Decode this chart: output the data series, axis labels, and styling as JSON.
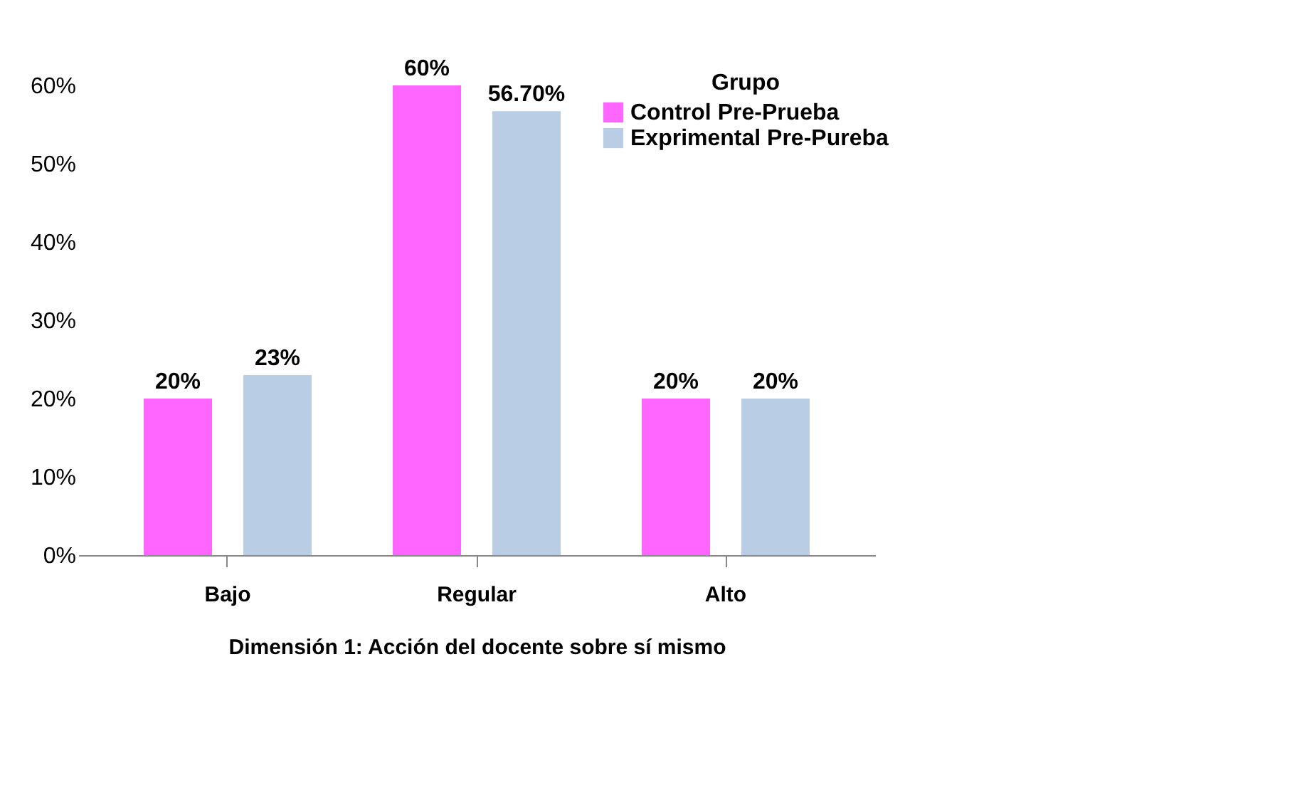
{
  "chart_data": {
    "type": "bar",
    "xlabel": "Dimensión 1: Acción del docente sobre sí mismo",
    "legend_title": "Grupo",
    "legend": "top right",
    "grid": false,
    "categories": [
      "Bajo",
      "Regular",
      "Alto"
    ],
    "series": [
      {
        "name": "Control Pre-Prueba",
        "color": "#ff66ff",
        "values": [
          20,
          60,
          20
        ],
        "value_labels": [
          "20%",
          "60%",
          "20%"
        ]
      },
      {
        "name": "Exprimental Pre-Pureba",
        "color": "#b9cde5",
        "values": [
          23,
          56.7,
          20
        ],
        "value_labels": [
          "23%",
          "56.70%",
          "20%"
        ]
      }
    ],
    "ylim": [
      0,
      60
    ],
    "yticks": [
      {
        "value": 0,
        "label": "0%"
      },
      {
        "value": 10,
        "label": "10%"
      },
      {
        "value": 20,
        "label": "20%"
      },
      {
        "value": 30,
        "label": "30%"
      },
      {
        "value": 40,
        "label": "40%"
      },
      {
        "value": 50,
        "label": "50%"
      },
      {
        "value": 60,
        "label": "60%"
      }
    ]
  }
}
